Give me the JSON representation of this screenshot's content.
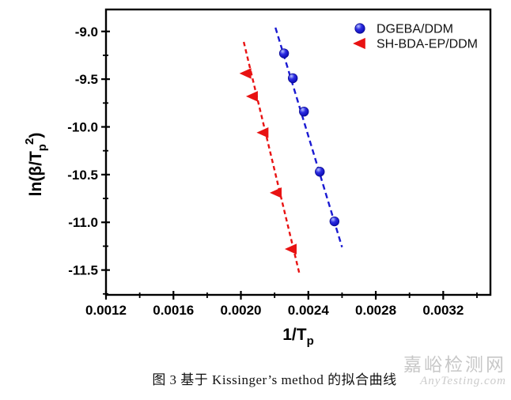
{
  "figure": {
    "caption": "图 3  基于 Kissinger’s method 的拟合曲线",
    "watermark": {
      "site_name": "嘉峪检测网",
      "site_url": "AnyTesting.com",
      "color": "#c7c7c7"
    }
  },
  "chart_data": {
    "type": "scatter",
    "title": "",
    "xlabel": "1/Tp",
    "xlabel_main": "1/T",
    "xlabel_sub": "p",
    "ylabel": "ln(β/Tp²)",
    "ylabel_main": "ln(β/T",
    "ylabel_sub": "p",
    "ylabel_sup": "2",
    "ylabel_close": ")",
    "xlim": [
      0.0012,
      0.00348
    ],
    "ylim": [
      -11.76,
      -8.77
    ],
    "x_ticks": [
      0.0012,
      0.0016,
      0.002,
      0.0024,
      0.0028,
      0.0032
    ],
    "x_tick_labels": [
      "0.0012",
      "0.0016",
      "0.0020",
      "0.0024",
      "0.0028",
      "0.0032"
    ],
    "x_minor_ticks": [
      0.0014,
      0.0018,
      0.0022,
      0.0026,
      0.003,
      0.0034
    ],
    "y_ticks": [
      -9.0,
      -9.5,
      -10.0,
      -10.5,
      -11.0,
      -11.5
    ],
    "y_tick_labels": [
      "-9.0",
      "-9.5",
      "-10.0",
      "-10.5",
      "-11.0",
      "-11.5"
    ],
    "y_minor_ticks": [
      -9.25,
      -9.75,
      -10.25,
      -10.75,
      -11.25,
      -11.75
    ],
    "grid": false,
    "legend_position": "top-right-inside",
    "axis_color": "#000000",
    "series": [
      {
        "name": "DGEBA/DDM",
        "marker": "ball-circle",
        "color": "#1a1ad2",
        "line_style": "dashed",
        "points": [
          [
            0.002256,
            -9.23
          ],
          [
            0.002308,
            -9.49
          ],
          [
            0.002374,
            -9.84
          ],
          [
            0.002468,
            -10.47
          ],
          [
            0.002555,
            -10.99
          ]
        ],
        "fit_line": {
          "x1": 0.002205,
          "y1": -8.96,
          "x2": 0.0026,
          "y2": -11.26
        }
      },
      {
        "name": "SH-BDA-EP/DDM",
        "marker": "triangle-left",
        "color": "#e81212",
        "line_style": "dashed",
        "points": [
          [
            0.002031,
            -9.44
          ],
          [
            0.00207,
            -9.68
          ],
          [
            0.002133,
            -10.06
          ],
          [
            0.002211,
            -10.69
          ],
          [
            0.0023,
            -11.28
          ]
        ],
        "fit_line": {
          "x1": 0.002017,
          "y1": -9.11,
          "x2": 0.002346,
          "y2": -11.53
        }
      }
    ]
  }
}
